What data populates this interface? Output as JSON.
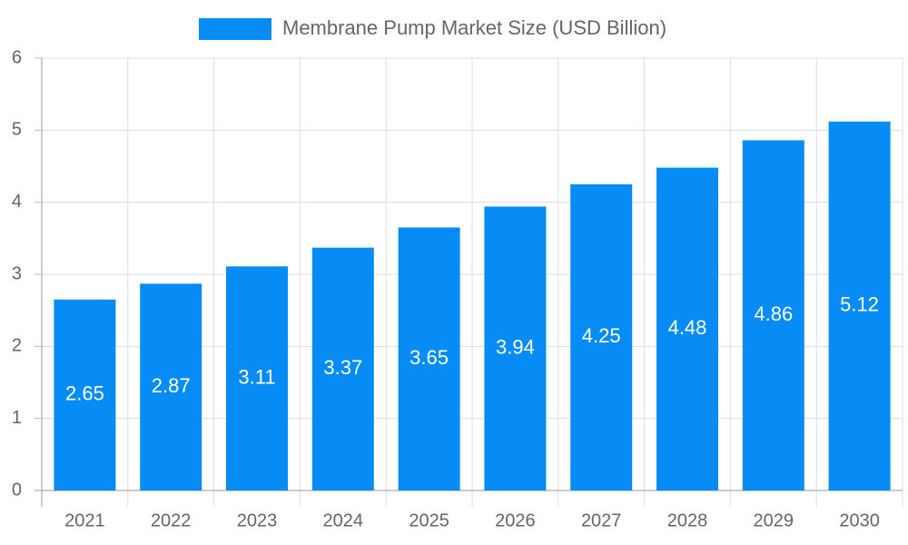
{
  "chart_data": {
    "type": "bar",
    "categories": [
      "2021",
      "2022",
      "2023",
      "2024",
      "2025",
      "2026",
      "2027",
      "2028",
      "2029",
      "2030"
    ],
    "series": [
      {
        "name": "Membrane Pump Market Size (USD Billion)",
        "color": "#078cf6",
        "values": [
          2.65,
          2.87,
          3.11,
          3.37,
          3.65,
          3.94,
          4.25,
          4.48,
          4.86,
          5.12
        ]
      }
    ],
    "ylim": [
      0,
      6
    ],
    "yticks": [
      0,
      1,
      2,
      3,
      4,
      5,
      6
    ],
    "grid": true,
    "legend": "top"
  }
}
